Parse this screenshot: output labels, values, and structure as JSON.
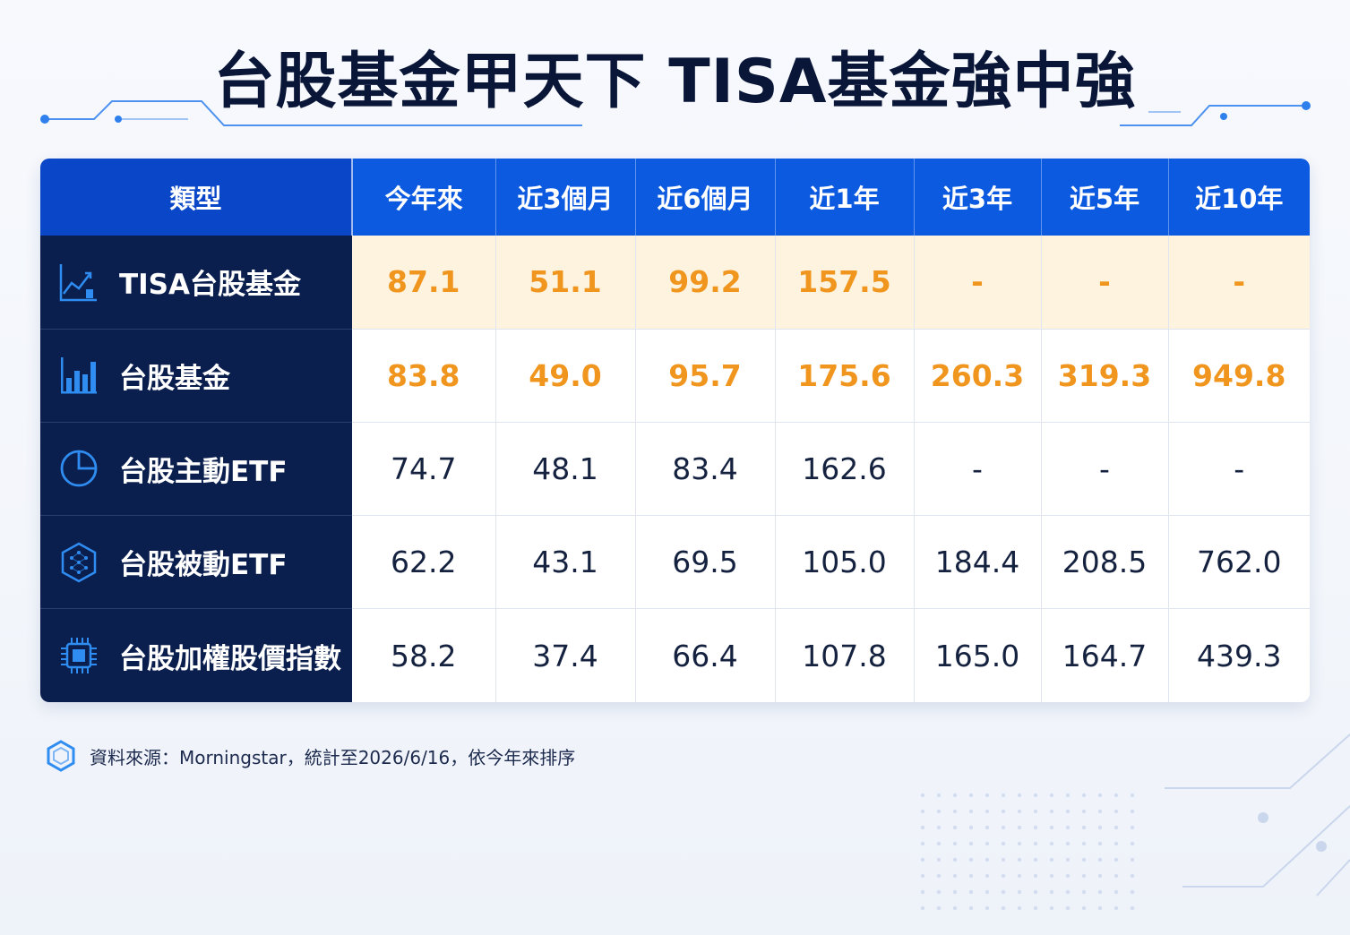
{
  "title": "台股基金甲天下 TISA基金強中強",
  "chart_data": {
    "type": "table",
    "columns": [
      "類型",
      "今年來",
      "近3個月",
      "近6個月",
      "近1年",
      "近3年",
      "近5年",
      "近10年"
    ],
    "rows": [
      {
        "label": "TISA台股基金",
        "icon": "line-chart-icon",
        "values": [
          "87.1",
          "51.1",
          "99.2",
          "157.5",
          "-",
          "-",
          "-"
        ]
      },
      {
        "label": "台股基金",
        "icon": "bar-chart-icon",
        "values": [
          "83.8",
          "49.0",
          "95.7",
          "175.6",
          "260.3",
          "319.3",
          "949.8"
        ]
      },
      {
        "label": "台股主動ETF",
        "icon": "pie-chart-icon",
        "values": [
          "74.7",
          "48.1",
          "83.4",
          "162.6",
          "-",
          "-",
          "-"
        ]
      },
      {
        "label": "台股被動ETF",
        "icon": "hexagon-network-icon",
        "values": [
          "62.2",
          "43.1",
          "69.5",
          "105.0",
          "184.4",
          "208.5",
          "762.0"
        ]
      },
      {
        "label": "台股加權股價指數",
        "icon": "chip-icon",
        "values": [
          "58.2",
          "37.4",
          "66.4",
          "107.8",
          "165.0",
          "164.7",
          "439.3"
        ]
      }
    ],
    "highlight_color": "#f0951d",
    "header_color": "#0b5ae0",
    "label_column_color": "#0b1f4f"
  },
  "footnote": "資料來源：Morningstar，統計至2026/6/16，依今年來排序"
}
